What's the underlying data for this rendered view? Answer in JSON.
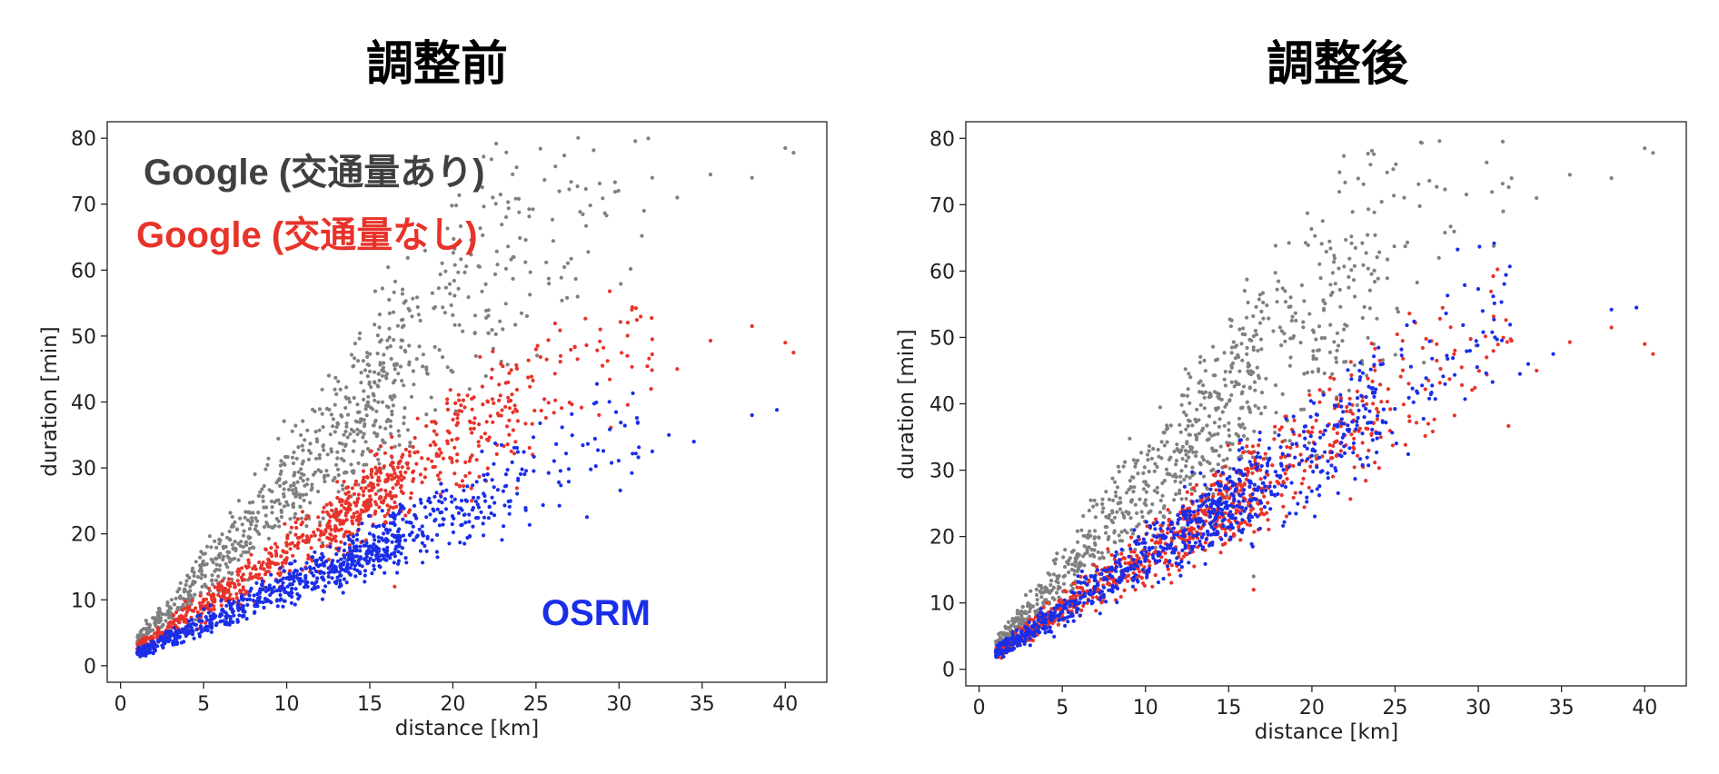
{
  "chart_data": [
    {
      "type": "scatter",
      "title": "調整前",
      "xlabel": "distance [km]",
      "ylabel": "duration [min]",
      "xlim": [
        -0.8,
        42.5
      ],
      "ylim": [
        -2.5,
        82.5
      ],
      "xticks": [
        0,
        5,
        10,
        15,
        20,
        25,
        30,
        35,
        40
      ],
      "yticks": [
        0,
        10,
        20,
        30,
        40,
        50,
        60,
        70,
        80
      ],
      "grid": false,
      "annotations": [
        {
          "text": "Google (交通量あり)",
          "color": "#404040"
        },
        {
          "text": "Google (交通量なし)",
          "color": "#e8332a"
        },
        {
          "text": "OSRM",
          "color": "#1a2ee8"
        }
      ],
      "series": [
        {
          "color": "#808080",
          "slope_range": [
            1.95,
            3.3
          ],
          "outliers": [
            [
              40,
              78.5
            ],
            [
              40.5,
              77.8
            ],
            [
              35.5,
              74.5
            ],
            [
              33.5,
              71
            ],
            [
              32,
              74
            ],
            [
              38,
              74
            ],
            [
              27.5,
              72.7
            ],
            [
              28,
              72.3
            ],
            [
              31.5,
              69
            ]
          ]
        },
        {
          "color": "#e8332a",
          "slope_range": [
            1.3,
            1.95
          ],
          "outliers": [
            [
              38,
              51.5
            ],
            [
              40,
              49
            ],
            [
              40.5,
              47.5
            ],
            [
              35.5,
              49.3
            ],
            [
              33.5,
              45
            ],
            [
              32,
              49.5
            ],
            [
              27.5,
              46.5
            ],
            [
              29,
              45.5
            ],
            [
              30.5,
              47
            ],
            [
              16.5,
              12
            ]
          ]
        },
        {
          "color": "#1a2ee8",
          "slope_range": [
            0.9,
            1.35
          ],
          "outliers": [
            [
              38,
              38
            ],
            [
              39.5,
              38.8
            ],
            [
              34.5,
              34
            ],
            [
              33,
              35
            ],
            [
              32,
              32.5
            ]
          ]
        }
      ]
    },
    {
      "type": "scatter",
      "title": "調整後",
      "xlabel": "distance [km]",
      "ylabel": "duration [min]",
      "xlim": [
        -0.8,
        42.5
      ],
      "ylim": [
        -2.5,
        82.5
      ],
      "xticks": [
        0,
        5,
        10,
        15,
        20,
        25,
        30,
        35,
        40
      ],
      "yticks": [
        0,
        10,
        20,
        30,
        40,
        50,
        60,
        70,
        80
      ],
      "grid": false,
      "series": [
        {
          "color": "#808080",
          "slope_range": [
            1.95,
            3.3
          ],
          "outliers": [
            [
              40,
              78.5
            ],
            [
              40.5,
              77.8
            ],
            [
              35.5,
              74.5
            ],
            [
              33.5,
              71
            ],
            [
              32,
              74
            ],
            [
              38,
              74
            ],
            [
              27.5,
              72.7
            ],
            [
              28,
              72.3
            ],
            [
              31.5,
              69
            ],
            [
              16.5,
              14
            ]
          ]
        },
        {
          "color": "#e8332a",
          "slope_range": [
            1.3,
            1.95
          ],
          "outliers": [
            [
              38,
              51.5
            ],
            [
              40,
              49
            ],
            [
              40.5,
              47.5
            ],
            [
              35.5,
              49.3
            ],
            [
              33.5,
              45
            ],
            [
              32,
              49.5
            ],
            [
              27.5,
              46.5
            ],
            [
              29,
              45.5
            ],
            [
              30.5,
              47
            ],
            [
              16.5,
              12
            ]
          ]
        },
        {
          "color": "#1a2ee8",
          "slope_range": [
            1.3,
            1.95
          ],
          "outliers": [
            [
              38,
              54.2
            ],
            [
              39.5,
              54.5
            ],
            [
              34.5,
              47.5
            ],
            [
              33,
              46
            ],
            [
              31,
              50
            ],
            [
              29.5,
              48
            ],
            [
              32.5,
              44.5
            ]
          ]
        }
      ]
    }
  ]
}
